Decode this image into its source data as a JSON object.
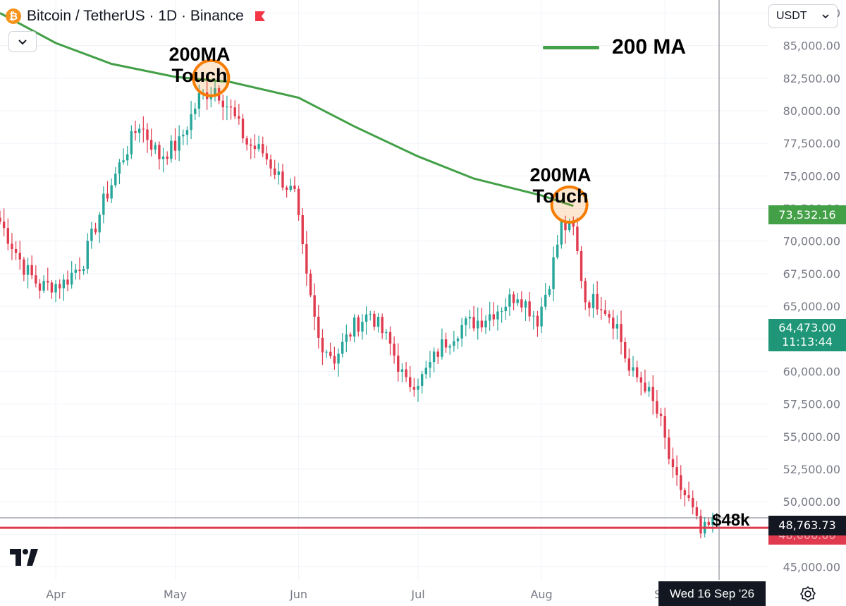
{
  "header": {
    "coin_symbol": "₿",
    "title": "Bitcoin / TetherUS · 1D · Binance",
    "currency": "USDT"
  },
  "legend": {
    "ma_label": "200 MA",
    "ma_color": "#43a047"
  },
  "annotations": [
    {
      "line1": "200MA",
      "line2": "Touch",
      "date": "2026-05-10",
      "price": 82500
    },
    {
      "line1": "200MA",
      "line2": "Touch",
      "date": "2026-08-08",
      "price": 72800
    }
  ],
  "price_tags": {
    "ma_value": "73,532.16",
    "current_price": "64,473.00",
    "countdown": "11:13:44",
    "crosshair_price": "48,763.73",
    "hidden_level": "48,000.00"
  },
  "level_label": "$48k",
  "crosshair_date": "Wed 16 Sep '26",
  "colors": {
    "up": "#26a69a",
    "down": "#e03a4e",
    "ma": "#43a047",
    "level": "#e03a4e",
    "annotation_ring": "#f57c00"
  },
  "chart_data": {
    "type": "candlestick",
    "title": "Bitcoin / TetherUS · 1D · Binance",
    "y_range": [
      44000,
      88500
    ],
    "x_range": [
      "2026-03-18",
      "2026-09-27"
    ],
    "y_ticks": [
      "45,000.00",
      "47,500.00",
      "50,000.00",
      "52,500.00",
      "55,000.00",
      "57,500.00",
      "60,000.00",
      "62,500.00",
      "65,000.00",
      "67,500.00",
      "70,000.00",
      "72,500.00",
      "75,000.00",
      "77,500.00",
      "80,000.00",
      "82,500.00",
      "85,000.00",
      "87,500.00"
    ],
    "y_tick_values": [
      45000,
      47500,
      50000,
      52500,
      55000,
      57500,
      60000,
      62500,
      65000,
      67500,
      70000,
      72500,
      75000,
      77500,
      80000,
      82500,
      85000,
      87500
    ],
    "x_ticks": [
      {
        "label": "Apr",
        "date": "2026-04-01"
      },
      {
        "label": "May",
        "date": "2026-05-01"
      },
      {
        "label": "Jun",
        "date": "2026-06-01"
      },
      {
        "label": "Jul",
        "date": "2026-07-01"
      },
      {
        "label": "Aug",
        "date": "2026-08-01"
      },
      {
        "label": "Sep",
        "date": "2026-09-01"
      }
    ],
    "key_closes": [
      {
        "date": "2026-03-18",
        "close": 71500
      },
      {
        "date": "2026-03-24",
        "close": 68000
      },
      {
        "date": "2026-03-28",
        "close": 66500
      },
      {
        "date": "2026-04-03",
        "close": 66800
      },
      {
        "date": "2026-04-08",
        "close": 68500
      },
      {
        "date": "2026-04-13",
        "close": 73000
      },
      {
        "date": "2026-04-18",
        "close": 76500
      },
      {
        "date": "2026-04-22",
        "close": 79000
      },
      {
        "date": "2026-04-27",
        "close": 76500
      },
      {
        "date": "2026-05-02",
        "close": 77500
      },
      {
        "date": "2026-05-07",
        "close": 81000
      },
      {
        "date": "2026-05-11",
        "close": 81800
      },
      {
        "date": "2026-05-15",
        "close": 80000
      },
      {
        "date": "2026-05-19",
        "close": 77500
      },
      {
        "date": "2026-05-23",
        "close": 76800
      },
      {
        "date": "2026-05-27",
        "close": 75000
      },
      {
        "date": "2026-05-31",
        "close": 73500
      },
      {
        "date": "2026-06-03",
        "close": 67000
      },
      {
        "date": "2026-06-06",
        "close": 62500
      },
      {
        "date": "2026-06-10",
        "close": 61000
      },
      {
        "date": "2026-06-15",
        "close": 63500
      },
      {
        "date": "2026-06-19",
        "close": 64500
      },
      {
        "date": "2026-06-24",
        "close": 62000
      },
      {
        "date": "2026-06-28",
        "close": 59000
      },
      {
        "date": "2026-07-02",
        "close": 59500
      },
      {
        "date": "2026-07-07",
        "close": 62000
      },
      {
        "date": "2026-07-12",
        "close": 63500
      },
      {
        "date": "2026-07-17",
        "close": 64000
      },
      {
        "date": "2026-07-22",
        "close": 65000
      },
      {
        "date": "2026-07-26",
        "close": 66000
      },
      {
        "date": "2026-07-31",
        "close": 64000
      },
      {
        "date": "2026-08-03",
        "close": 67000
      },
      {
        "date": "2026-08-06",
        "close": 71200
      },
      {
        "date": "2026-08-09",
        "close": 70800
      },
      {
        "date": "2026-08-12",
        "close": 65500
      },
      {
        "date": "2026-08-16",
        "close": 65300
      },
      {
        "date": "2026-08-20",
        "close": 63500
      },
      {
        "date": "2026-08-23",
        "close": 60000
      },
      {
        "date": "2026-08-27",
        "close": 59000
      },
      {
        "date": "2026-08-31",
        "close": 56000
      },
      {
        "date": "2026-09-03",
        "close": 52000
      },
      {
        "date": "2026-09-07",
        "close": 50000
      },
      {
        "date": "2026-09-10",
        "close": 47500
      },
      {
        "date": "2026-09-13",
        "close": 48300
      }
    ],
    "ma_200": [
      {
        "date": "2026-03-18",
        "value": 87500
      },
      {
        "date": "2026-04-01",
        "value": 85200
      },
      {
        "date": "2026-04-15",
        "value": 83600
      },
      {
        "date": "2026-05-01",
        "value": 82600
      },
      {
        "date": "2026-05-15",
        "value": 82200
      },
      {
        "date": "2026-06-01",
        "value": 81000
      },
      {
        "date": "2026-06-15",
        "value": 78800
      },
      {
        "date": "2026-07-01",
        "value": 76500
      },
      {
        "date": "2026-07-15",
        "value": 74800
      },
      {
        "date": "2026-08-01",
        "value": 73500
      },
      {
        "date": "2026-08-09",
        "value": 72700
      }
    ],
    "horizontal_level": 48000,
    "crosshair_price": 48763.73
  }
}
